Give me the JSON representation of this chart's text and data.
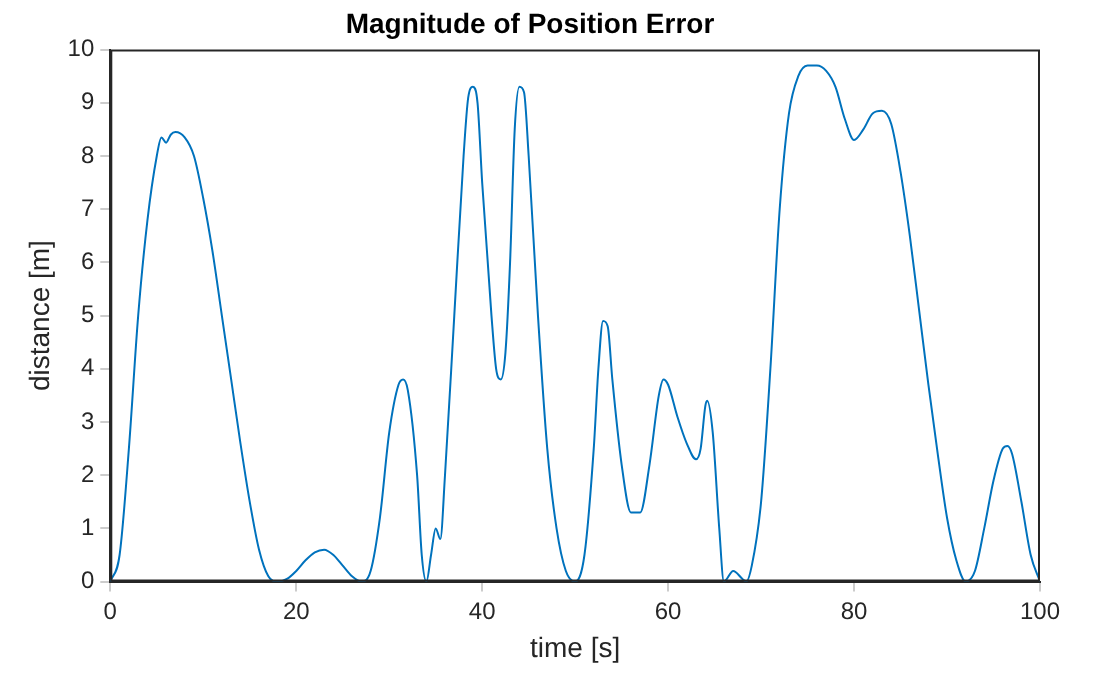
{
  "chart_data": {
    "type": "line",
    "title": "Magnitude of Position Error",
    "xlabel": "time [s]",
    "ylabel": "distance [m]",
    "xlim": [
      0,
      100
    ],
    "xticks": [
      0,
      20,
      40,
      60,
      80,
      100
    ],
    "ylim": [
      0,
      10
    ],
    "yticks": [
      0,
      1,
      2,
      3,
      4,
      5,
      6,
      7,
      8,
      9,
      10
    ],
    "grid": false,
    "legend": false,
    "marker": "none",
    "line_style": "solid",
    "series": [
      {
        "color": "#0072bd",
        "x": [
          0,
          1,
          2,
          3,
          4,
          5,
          5.5,
          6,
          6.5,
          7,
          8,
          9,
          10,
          11,
          12,
          13,
          14,
          15,
          16,
          17,
          18,
          19,
          20,
          21,
          22,
          23,
          24,
          25,
          26,
          27,
          28,
          29,
          30,
          31,
          31.5,
          32,
          33,
          33.5,
          34,
          34.5,
          35,
          35.5,
          36,
          37,
          38,
          38.5,
          39,
          39.5,
          40,
          41,
          41.5,
          42,
          42.5,
          43,
          43.5,
          44,
          44.5,
          45,
          46,
          47,
          48,
          49,
          50,
          51,
          52,
          52.5,
          53,
          53.5,
          54,
          55,
          56,
          57,
          58,
          59,
          59.5,
          60,
          61,
          62,
          63,
          63.5,
          64,
          64.2,
          64.8,
          65.5,
          66,
          67,
          68,
          68.4,
          69,
          70,
          71,
          72,
          73,
          74,
          75,
          76,
          77,
          78,
          79,
          80,
          81,
          82,
          83,
          84,
          85,
          86,
          87,
          88,
          89,
          90,
          91,
          92,
          93,
          94,
          95,
          96,
          96.5,
          97,
          98,
          99,
          100
        ],
        "values": [
          0,
          0.5,
          2.5,
          5,
          6.8,
          8,
          8.35,
          8.25,
          8.4,
          8.45,
          8.35,
          8,
          7.2,
          6.2,
          5,
          3.8,
          2.6,
          1.5,
          0.6,
          0.1,
          0,
          0.05,
          0.2,
          0.4,
          0.55,
          0.6,
          0.5,
          0.3,
          0.1,
          0,
          0.2,
          1.2,
          2.8,
          3.7,
          3.8,
          3.6,
          2,
          0.5,
          0,
          0.5,
          1,
          0.8,
          2,
          5,
          8,
          9.1,
          9.3,
          9,
          7.5,
          5,
          4,
          3.8,
          4.3,
          6,
          8.5,
          9.3,
          9.2,
          8,
          5,
          2.5,
          1,
          0.2,
          0,
          0.5,
          2.5,
          4,
          4.9,
          4.8,
          3.8,
          2.2,
          1.3,
          1.3,
          2.2,
          3.5,
          3.8,
          3.7,
          3.1,
          2.6,
          2.3,
          2.5,
          3.3,
          3.4,
          2.8,
          1,
          0,
          0.2,
          0.05,
          0,
          0.3,
          1.5,
          4,
          7,
          8.8,
          9.5,
          9.7,
          9.7,
          9.6,
          9.3,
          8.7,
          8.3,
          8.5,
          8.8,
          8.85,
          8.6,
          7.7,
          6.5,
          5.1,
          3.7,
          2.4,
          1.2,
          0.4,
          0,
          0.2,
          1,
          1.9,
          2.5,
          2.55,
          2.4,
          1.5,
          0.5,
          0
        ]
      }
    ]
  }
}
